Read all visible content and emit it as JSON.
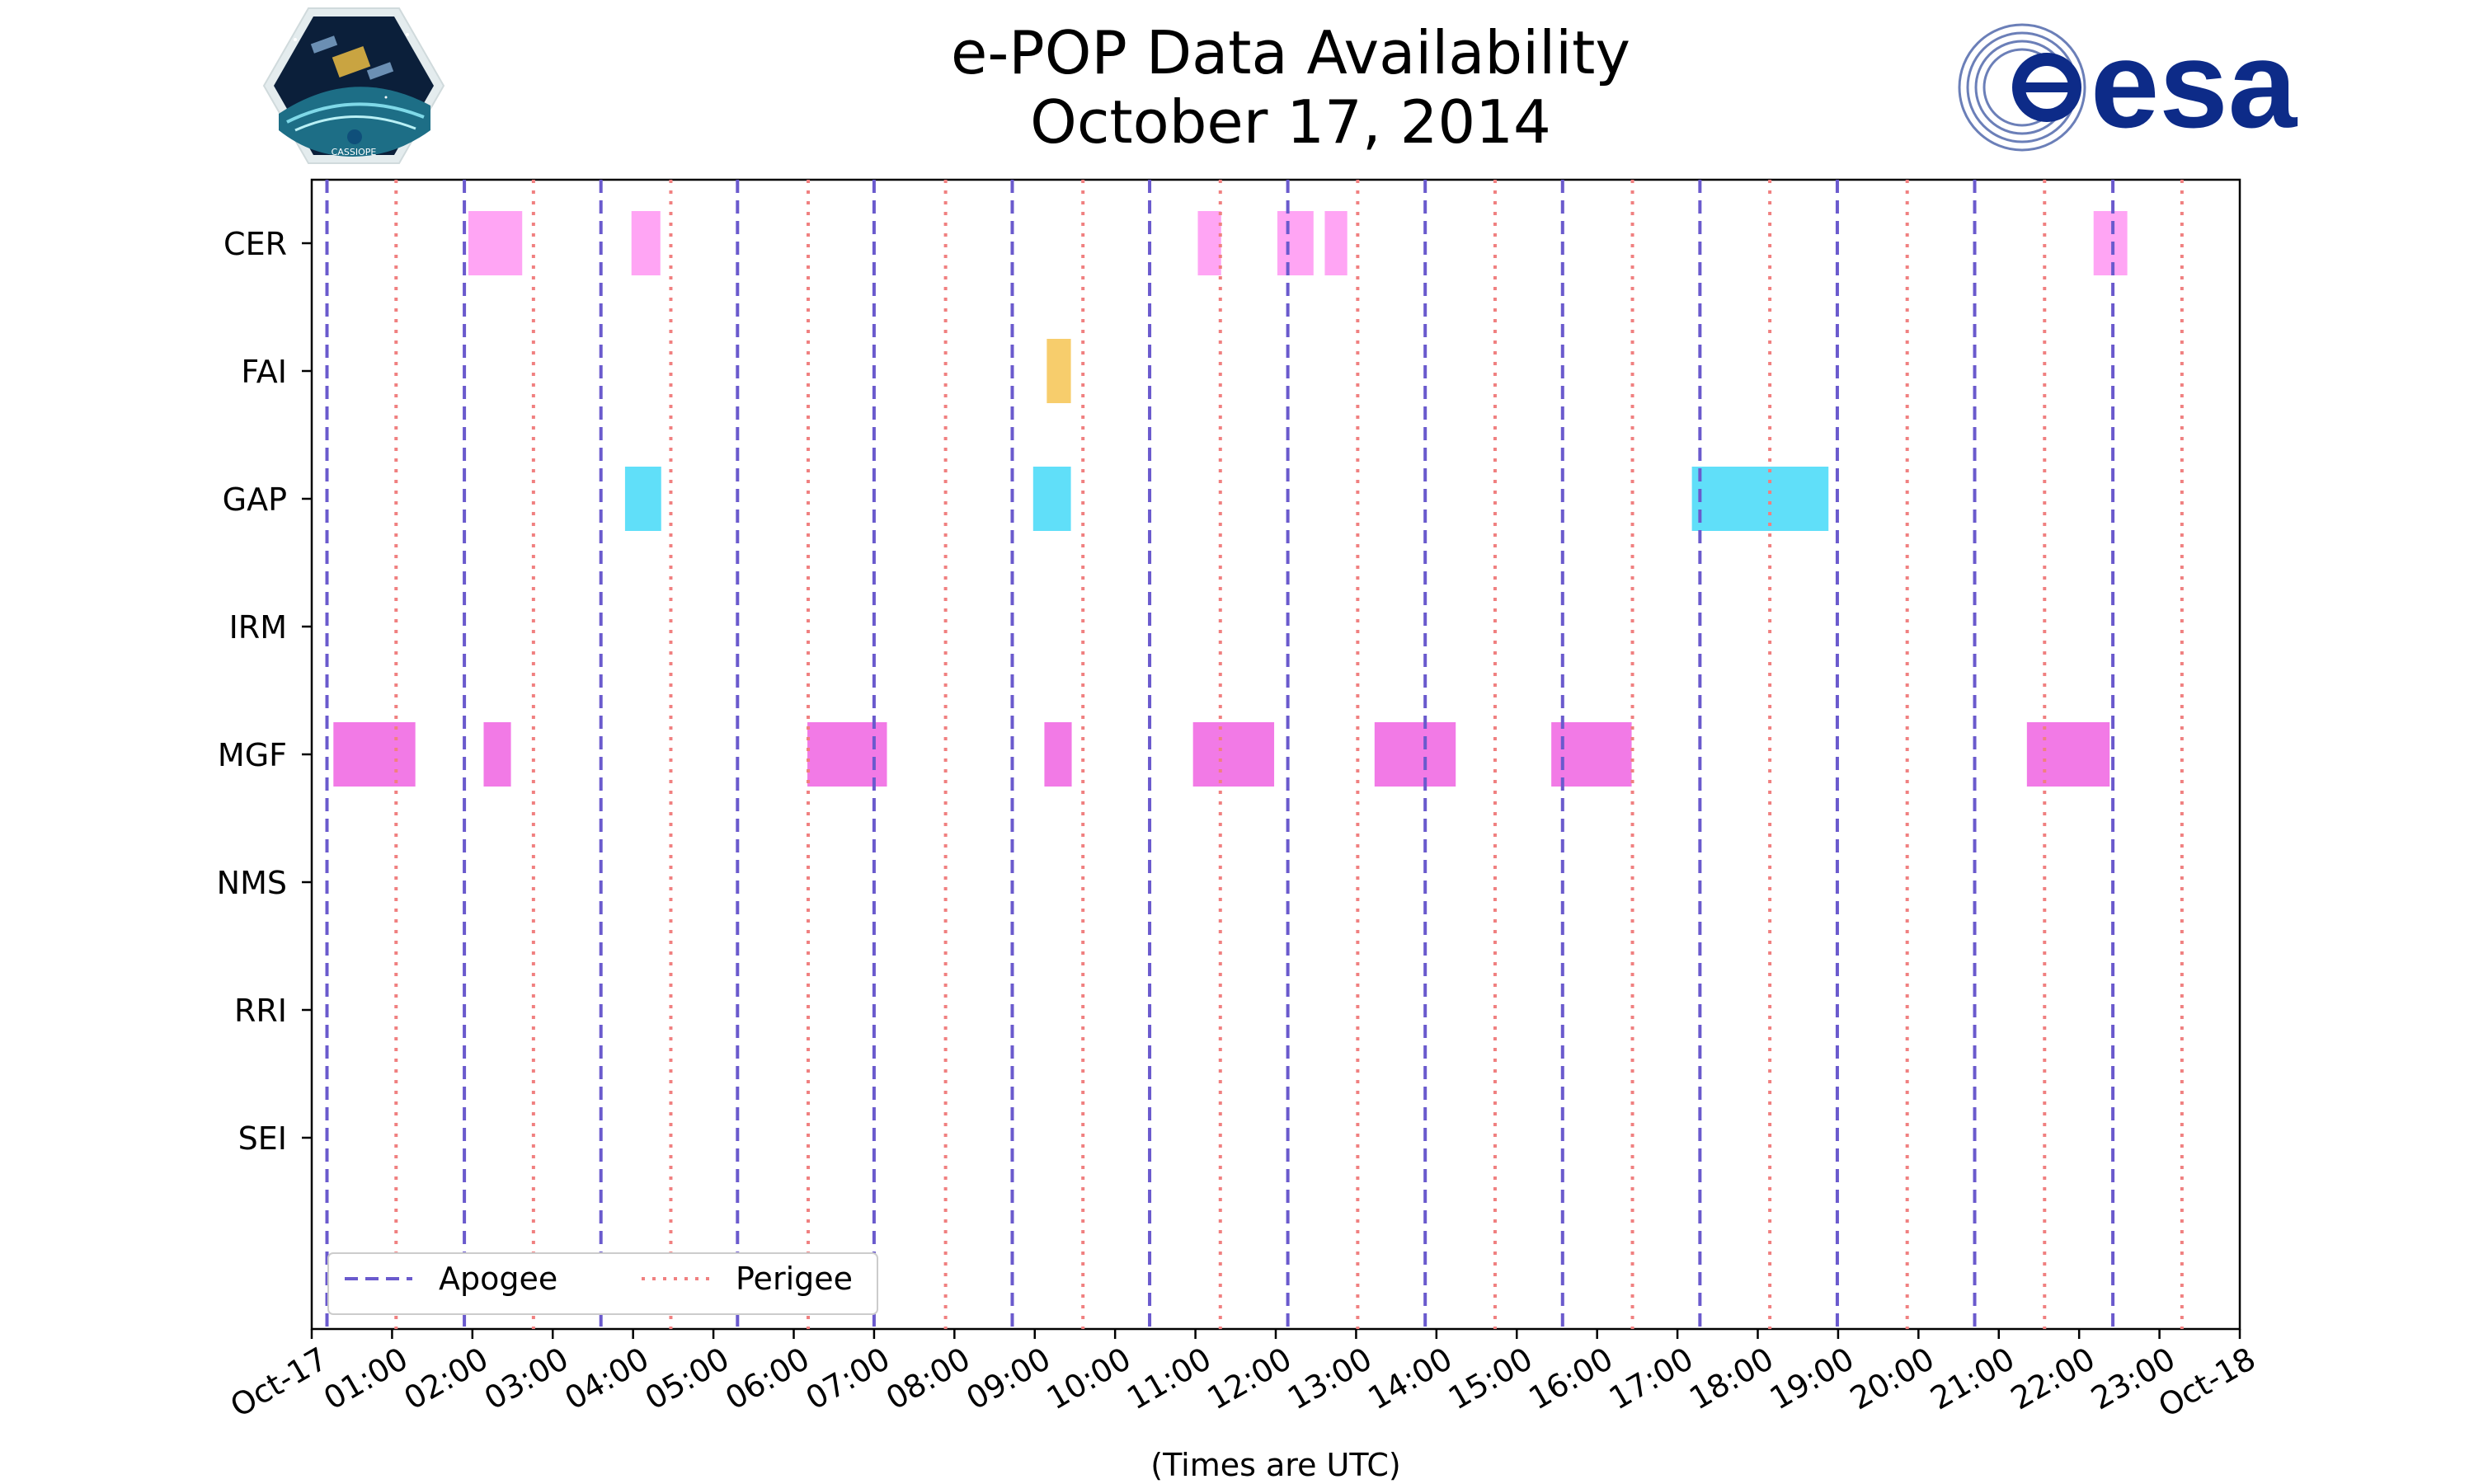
{
  "title_line1": "e-POP Data Availability",
  "title_line2": "October 17, 2014",
  "logos": {
    "left": {
      "name": "cassiope-mission-logo",
      "label": "CASSIOPE"
    },
    "right": {
      "name": "esa-logo",
      "label": "esa"
    }
  },
  "colors": {
    "CER": "#ffa5f4",
    "FAI": "#f7cd6c",
    "GAP": "#60dff9",
    "MGF": "#f27ae6",
    "apogee": "#6a5acd",
    "perigee": "#f08080",
    "frame": "#000000"
  },
  "chart_data": {
    "type": "timeline",
    "title": "e-POP Data Availability",
    "subtitle": "October 17, 2014",
    "xlabel": "(Times are UTC)",
    "xlim_hours": [
      0,
      24
    ],
    "x_tick_labels": [
      "Oct-17",
      "01:00",
      "02:00",
      "03:00",
      "04:00",
      "05:00",
      "06:00",
      "07:00",
      "08:00",
      "09:00",
      "10:00",
      "11:00",
      "12:00",
      "13:00",
      "14:00",
      "15:00",
      "16:00",
      "17:00",
      "18:00",
      "19:00",
      "20:00",
      "21:00",
      "22:00",
      "23:00",
      "Oct-18"
    ],
    "instruments": [
      "CER",
      "FAI",
      "GAP",
      "IRM",
      "MGF",
      "NMS",
      "RRI",
      "SEI"
    ],
    "apogee_hours": [
      0.19,
      1.9,
      3.6,
      5.3,
      7.0,
      8.72,
      10.43,
      12.15,
      13.86,
      15.57,
      17.28,
      18.99,
      20.7,
      22.42
    ],
    "perigee_hours": [
      1.05,
      2.76,
      4.47,
      6.18,
      7.89,
      9.6,
      11.31,
      13.02,
      14.73,
      16.44,
      18.15,
      19.86,
      21.57,
      23.28
    ],
    "legend": [
      {
        "key": "apogee",
        "label": "Apogee",
        "style": "dashed"
      },
      {
        "key": "perigee",
        "label": "Perigee",
        "style": "dotted"
      }
    ],
    "legend_loc": "lower left",
    "segments": {
      "CER": [
        [
          1.95,
          2.62
        ],
        [
          3.98,
          4.34
        ],
        [
          11.03,
          11.32
        ],
        [
          12.02,
          12.47
        ],
        [
          12.61,
          12.89
        ],
        [
          22.18,
          22.6
        ]
      ],
      "FAI": [
        [
          9.15,
          9.45
        ]
      ],
      "GAP": [
        [
          3.9,
          4.35
        ],
        [
          8.98,
          9.45
        ],
        [
          17.18,
          18.88
        ]
      ],
      "IRM": [],
      "MGF": [
        [
          0.27,
          1.29
        ],
        [
          2.14,
          2.48
        ],
        [
          6.17,
          7.16
        ],
        [
          9.12,
          9.46
        ],
        [
          10.97,
          11.98
        ],
        [
          13.23,
          14.24
        ],
        [
          15.43,
          16.43
        ],
        [
          21.35,
          22.38
        ]
      ],
      "NMS": [],
      "RRI": [],
      "SEI": []
    }
  }
}
